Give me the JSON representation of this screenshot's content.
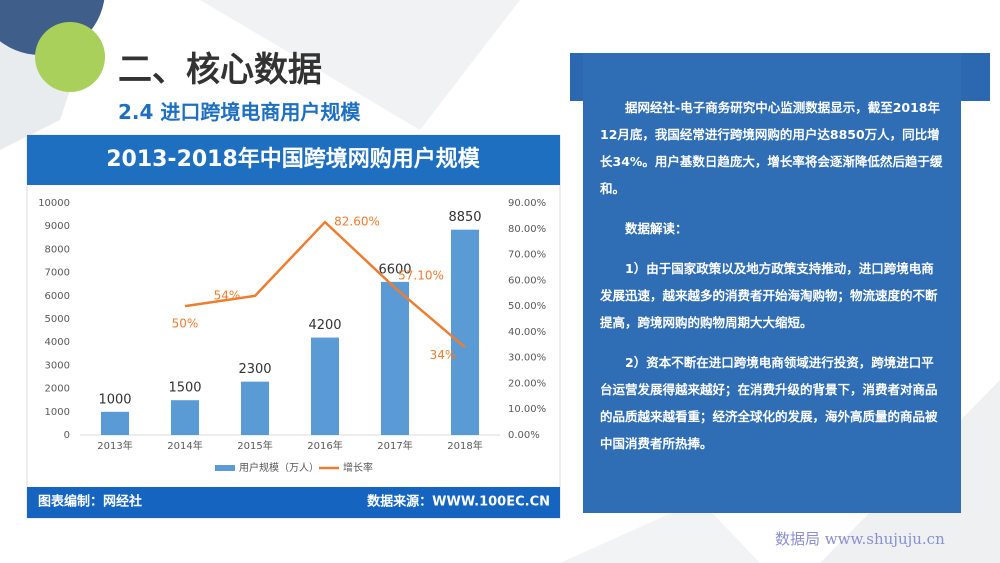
{
  "header": {
    "title": "二、核心数据",
    "subtitle": "2.4 进口跨境电商用户规模"
  },
  "chart_data": {
    "type": "bar",
    "title": "2013-2018年中国跨境网购用户规模",
    "categories": [
      "2013年",
      "2014年",
      "2015年",
      "2016年",
      "2017年",
      "2018年"
    ],
    "series": [
      {
        "name": "用户规模（万人）",
        "type": "bar",
        "color": "#5b9bd5",
        "values": [
          1000,
          1500,
          2300,
          4200,
          6600,
          8850
        ]
      },
      {
        "name": "增长率",
        "type": "line",
        "axis": "y2",
        "color": "#ed7d31",
        "values": [
          null,
          50,
          54,
          82.6,
          57.1,
          34
        ],
        "value_labels": [
          null,
          "50%",
          "54%",
          "82.60%",
          "57.10%",
          "34%"
        ]
      }
    ],
    "ylim": [
      0,
      10000
    ],
    "yticks": [
      0,
      1000,
      2000,
      3000,
      4000,
      5000,
      6000,
      7000,
      8000,
      9000,
      10000
    ],
    "y2lim": [
      0,
      90
    ],
    "y2ticks": [
      {
        "value": 0,
        "label": "0.00%"
      },
      {
        "value": 10,
        "label": "10.00%"
      },
      {
        "value": 20,
        "label": "20.00%"
      },
      {
        "value": 30,
        "label": "30.00%"
      },
      {
        "value": 40,
        "label": "40.00%"
      },
      {
        "value": 50,
        "label": "50.00%"
      },
      {
        "value": 60,
        "label": "60.00%"
      },
      {
        "value": 70,
        "label": "70.00%"
      },
      {
        "value": 80,
        "label": "80.00%"
      },
      {
        "value": 90,
        "label": "90.00%"
      }
    ],
    "grid": false
  },
  "footer": {
    "credit": "图表编制：网经社",
    "source": "数据来源：WWW.100EC.CN"
  },
  "panel": {
    "paragraphs": [
      "据网经社-电子商务研究中心监测数据显示，截至2018年12月底，我国经常进行跨境网购的用户达8850万人，同比增长34%。用户基数日趋庞大，增长率将会逐渐降低然后趋于缓和。",
      "数据解读：",
      "1）由于国家政策以及地方政策支持推动，进口跨境电商发展迅速，越来越多的消费者开始海淘购物；物流速度的不断提高，跨境网购的购物周期大大缩短。",
      "2）资本不断在进口跨境电商领域进行投资，跨境进口平台运营发展得越来越好；在消费升级的背景下，消费者对商品的品质越来越看重；经济全球化的发展，海外高质量的商品被中国消费者所热捧。"
    ]
  },
  "watermark": "数据局 www.shujuju.cn"
}
